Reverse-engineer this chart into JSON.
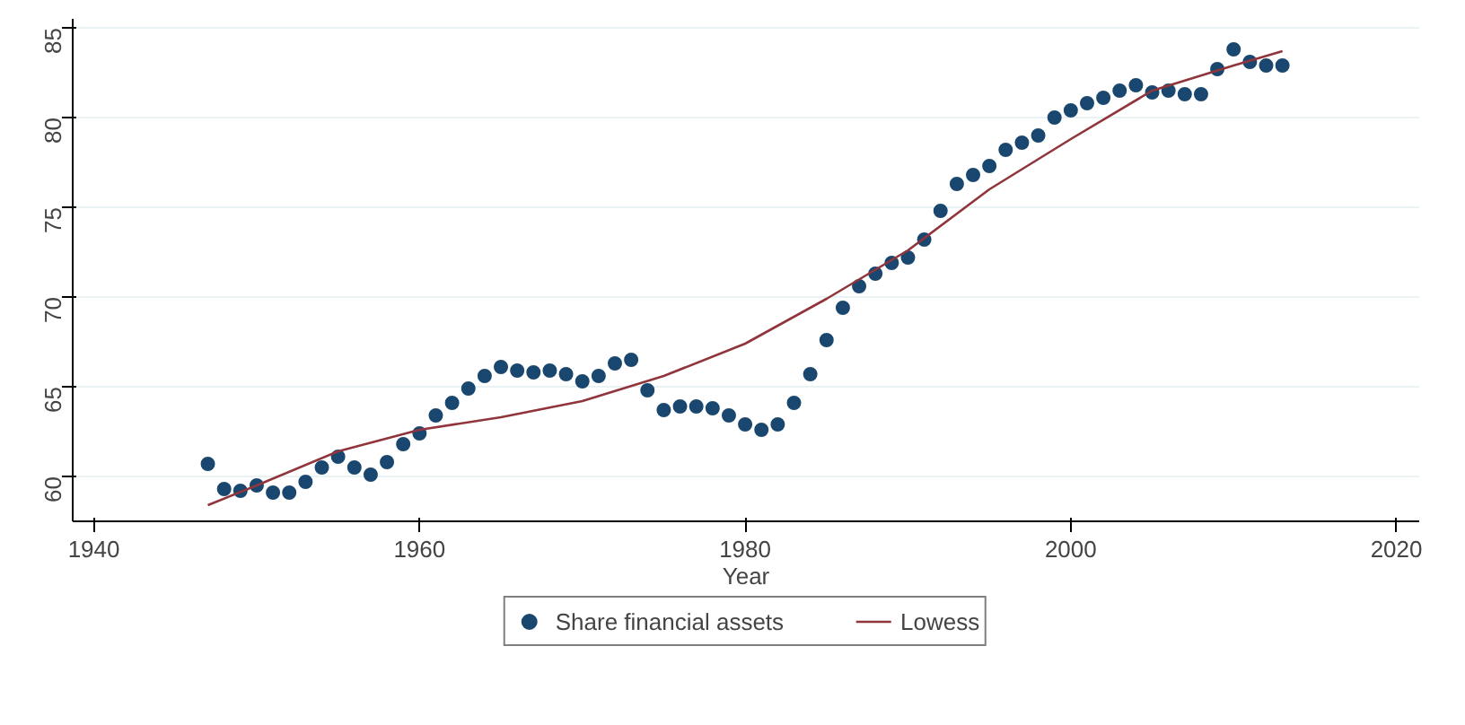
{
  "chart_data": {
    "type": "scatter",
    "xlabel": "Year",
    "xlim": [
      1938.7,
      2021.4
    ],
    "ylim": [
      57.5,
      85.5
    ],
    "xticks": [
      1940,
      1960,
      1980,
      2000,
      2020
    ],
    "yticks": [
      60,
      65,
      70,
      75,
      80,
      85
    ],
    "grid": "y",
    "legend": "bottom",
    "x": [
      1947,
      1948,
      1949,
      1950,
      1951,
      1952,
      1953,
      1954,
      1955,
      1956,
      1957,
      1958,
      1959,
      1960,
      1961,
      1962,
      1963,
      1964,
      1965,
      1966,
      1967,
      1968,
      1969,
      1970,
      1971,
      1972,
      1973,
      1974,
      1975,
      1976,
      1977,
      1978,
      1979,
      1980,
      1981,
      1982,
      1983,
      1984,
      1985,
      1986,
      1987,
      1988,
      1989,
      1990,
      1991,
      1992,
      1993,
      1994,
      1995,
      1996,
      1997,
      1998,
      1999,
      2000,
      2001,
      2002,
      2003,
      2004,
      2005,
      2006,
      2007,
      2008,
      2009,
      2010,
      2011,
      2012,
      2013
    ],
    "series": [
      {
        "name": "Share financial assets",
        "color": "#1a476f",
        "type": "scatter",
        "marker": "circle",
        "values": [
          60.7,
          59.3,
          59.2,
          59.5,
          59.1,
          59.1,
          59.7,
          60.5,
          61.1,
          60.5,
          60.1,
          60.8,
          61.8,
          62.4,
          63.4,
          64.1,
          64.9,
          65.6,
          66.1,
          65.9,
          65.8,
          65.9,
          65.7,
          65.3,
          65.6,
          66.3,
          66.5,
          64.8,
          63.7,
          63.9,
          63.9,
          63.8,
          63.4,
          62.9,
          62.6,
          62.9,
          64.1,
          65.7,
          67.6,
          69.4,
          70.6,
          71.3,
          71.9,
          72.2,
          73.2,
          74.8,
          76.3,
          76.8,
          77.3,
          78.2,
          78.6,
          79.0,
          80.0,
          80.4,
          80.8,
          81.1,
          81.5,
          81.8,
          81.4,
          81.5,
          81.3,
          81.3,
          82.7,
          83.8,
          83.1,
          82.9,
          82.9
        ]
      },
      {
        "name": "Lowess",
        "color": "#90353b",
        "type": "line",
        "line_style": "solid",
        "x": [
          1947,
          1950,
          1955,
          1960,
          1965,
          1970,
          1975,
          1980,
          1985,
          1990,
          1995,
          2000,
          2005,
          2010,
          2013
        ],
        "values": [
          58.4,
          59.5,
          61.4,
          62.6,
          63.3,
          64.2,
          65.6,
          67.4,
          69.9,
          72.6,
          76.0,
          78.8,
          81.5,
          82.9,
          83.7
        ]
      }
    ]
  }
}
